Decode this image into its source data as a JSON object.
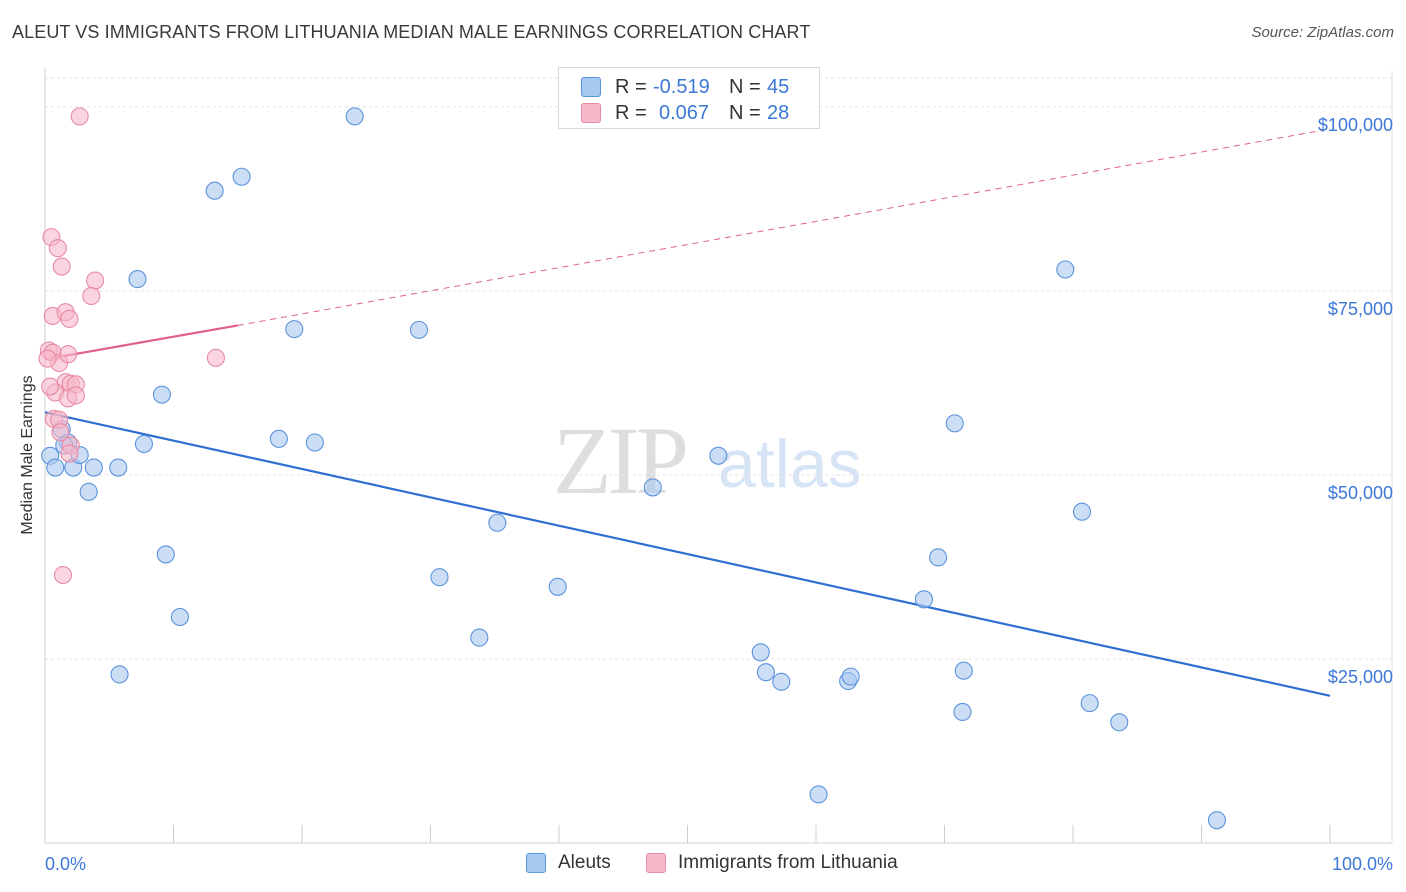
{
  "title": "ALEUT VS IMMIGRANTS FROM LITHUANIA MEDIAN MALE EARNINGS CORRELATION CHART",
  "source": "Source: ZipAtlas.com",
  "watermark": {
    "zip": "ZIP",
    "atlas": "atlas"
  },
  "colors": {
    "aleut_fill": "#a9c8f0",
    "aleut_stroke": "#5b93dc",
    "aleut_line": "#2f6fd0",
    "lith_fill": "#f7b8ca",
    "lith_stroke": "#e78aa6",
    "lith_line": "#e0608a",
    "grid": "#e3e3e3",
    "tick_text": "#3c78d8"
  },
  "stats": [
    {
      "r_label": "R =",
      "r_value": "-0.519",
      "n_label": "N =",
      "n_value": "45"
    },
    {
      "r_label": "R =",
      "r_value": "0.067",
      "n_label": "N =",
      "n_value": "28"
    }
  ],
  "legend": {
    "aleut": "Aleuts",
    "lith": "Immigrants from Lithuania"
  },
  "chart_data": {
    "type": "scatter",
    "title": "ALEUT VS IMMIGRANTS FROM LITHUANIA MEDIAN MALE EARNINGS CORRELATION CHART",
    "xlabel": "",
    "ylabel": "Median Male Earnings",
    "xlim": [
      0,
      100
    ],
    "ylim": [
      0,
      105000
    ],
    "x_tick_labels": [
      "0.0%",
      "100.0%"
    ],
    "y_ticks": [
      25000,
      50000,
      75000,
      100000
    ],
    "y_tick_labels": [
      "$25,000",
      "$50,000",
      "$75,000",
      "$100,000"
    ],
    "grid": true,
    "series": [
      {
        "name": "Aleuts",
        "points": [
          [
            0.4,
            52600
          ],
          [
            0.8,
            51000
          ],
          [
            1.3,
            56200
          ],
          [
            1.8,
            54400
          ],
          [
            2.2,
            51000
          ],
          [
            2.7,
            52700
          ],
          [
            3.4,
            47700
          ],
          [
            3.8,
            51000
          ],
          [
            5.7,
            51000
          ],
          [
            5.8,
            22900
          ],
          [
            7.2,
            76600
          ],
          [
            7.7,
            54200
          ],
          [
            9.1,
            60900
          ],
          [
            9.4,
            39200
          ],
          [
            10.5,
            30700
          ],
          [
            13.2,
            88600
          ],
          [
            15.3,
            90500
          ],
          [
            18.2,
            54900
          ],
          [
            19.4,
            69800
          ],
          [
            21.0,
            54400
          ],
          [
            24.1,
            98700
          ],
          [
            29.1,
            69700
          ],
          [
            30.7,
            36100
          ],
          [
            33.8,
            27900
          ],
          [
            35.2,
            43500
          ],
          [
            39.9,
            34800
          ],
          [
            47.3,
            48300
          ],
          [
            52.4,
            52600
          ],
          [
            55.7,
            25900
          ],
          [
            56.1,
            23200
          ],
          [
            57.3,
            21900
          ],
          [
            60.2,
            6600
          ],
          [
            62.5,
            22000
          ],
          [
            62.7,
            22600
          ],
          [
            68.4,
            33100
          ],
          [
            69.5,
            38800
          ],
          [
            70.8,
            57000
          ],
          [
            71.4,
            17800
          ],
          [
            71.5,
            23400
          ],
          [
            79.4,
            77900
          ],
          [
            80.7,
            45000
          ],
          [
            81.3,
            19000
          ],
          [
            83.6,
            16400
          ],
          [
            91.2,
            3100
          ],
          [
            1.5,
            54000
          ]
        ]
      },
      {
        "name": "Immigrants from Lithuania",
        "points": [
          [
            2.7,
            98700
          ],
          [
            0.5,
            82300
          ],
          [
            1.0,
            80800
          ],
          [
            1.3,
            78300
          ],
          [
            3.9,
            76400
          ],
          [
            3.6,
            74300
          ],
          [
            0.6,
            71600
          ],
          [
            1.6,
            72100
          ],
          [
            1.9,
            71200
          ],
          [
            0.3,
            66900
          ],
          [
            0.6,
            66600
          ],
          [
            1.1,
            65200
          ],
          [
            1.8,
            66400
          ],
          [
            13.3,
            65900
          ],
          [
            1.6,
            62600
          ],
          [
            2.0,
            62400
          ],
          [
            2.4,
            62300
          ],
          [
            0.8,
            61200
          ],
          [
            1.8,
            60400
          ],
          [
            2.4,
            60800
          ],
          [
            0.7,
            57600
          ],
          [
            1.1,
            57500
          ],
          [
            2.0,
            54000
          ],
          [
            1.9,
            52900
          ],
          [
            1.4,
            36400
          ],
          [
            0.2,
            65800
          ],
          [
            1.2,
            55800
          ],
          [
            0.4,
            62000
          ]
        ]
      }
    ],
    "trendlines": [
      {
        "series": "Aleuts",
        "x": [
          0,
          100
        ],
        "y": [
          58500,
          20000
        ],
        "style": "solid"
      },
      {
        "series": "Immigrants from Lithuania",
        "x": [
          0,
          15
        ],
        "y": [
          65700,
          70300
        ],
        "style": "solid"
      },
      {
        "series": "Immigrants from Lithuania",
        "x": [
          15,
          100
        ],
        "y": [
          70300,
          97000
        ],
        "style": "dashed"
      }
    ],
    "correlation": [
      {
        "series": "Aleuts",
        "R": -0.519,
        "N": 45
      },
      {
        "series": "Immigrants from Lithuania",
        "R": 0.067,
        "N": 28
      }
    ]
  }
}
